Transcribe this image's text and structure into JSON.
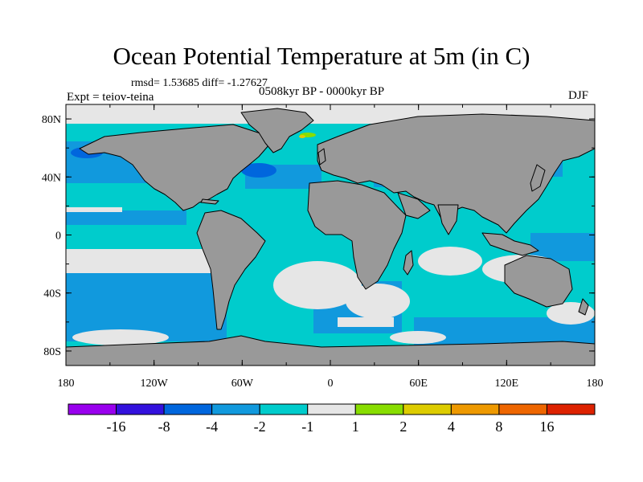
{
  "title": "Ocean Potential Temperature at 5m (in C)",
  "stats_line": "rmsd= 1.53685 diff= -1.27627",
  "experiment_label": "Expt = teiov-teina",
  "period_label": "0508kyr BP - 0000kyr BP",
  "season_label": "DJF",
  "map": {
    "projection": "cylindrical equidistant",
    "lon_range": [
      -180,
      180
    ],
    "lat_range": [
      -90,
      90
    ],
    "lat_ticks": [
      {
        "value": 80,
        "label": "80N"
      },
      {
        "value": 40,
        "label": "40N"
      },
      {
        "value": 0,
        "label": "0"
      },
      {
        "value": -40,
        "label": "40S"
      },
      {
        "value": -80,
        "label": "80S"
      }
    ],
    "lon_ticks": [
      {
        "value": -180,
        "label": "180"
      },
      {
        "value": -120,
        "label": "120W"
      },
      {
        "value": -60,
        "label": "60W"
      },
      {
        "value": 0,
        "label": "0"
      },
      {
        "value": 60,
        "label": "60E"
      },
      {
        "value": 120,
        "label": "120E"
      },
      {
        "value": 180,
        "label": "180"
      }
    ],
    "land_color": "#999999",
    "ocean_base_color": "#00cccc"
  },
  "colorbar": {
    "colors": [
      "#9900ee",
      "#3311dd",
      "#0066dd",
      "#1199dd",
      "#00cccc",
      "#e6e6e6",
      "#88dd00",
      "#ddcc00",
      "#ee9900",
      "#ee6600",
      "#dd2200"
    ],
    "labels": [
      "-16",
      "-8",
      "-4",
      "-2",
      "-1",
      "1",
      "2",
      "4",
      "8",
      "16"
    ]
  }
}
